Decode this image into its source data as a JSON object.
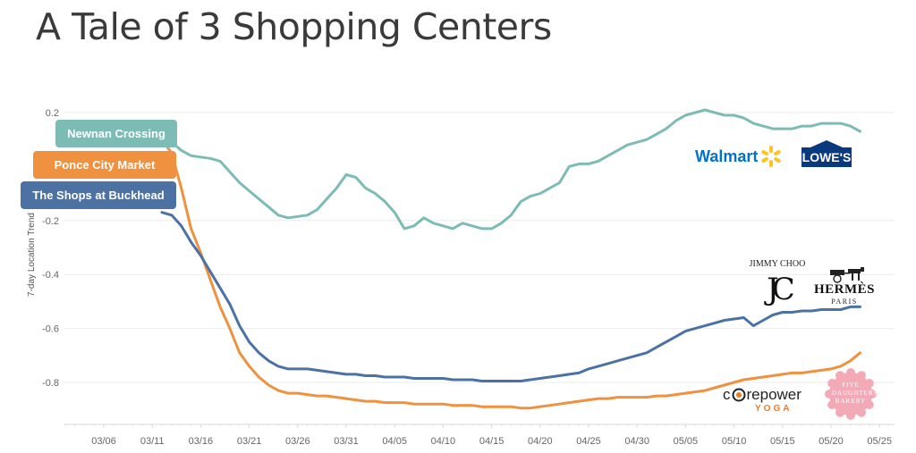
{
  "title": "A Tale of 3 Shopping Centers",
  "colors": {
    "newnan": "#7cbcb5",
    "ponce": "#f0913f",
    "buckhead": "#4c72a4"
  },
  "logos": {
    "walmart": "Walmart",
    "lowes": "LOWE'S",
    "jimmy_choo": "JIMMY CHOO",
    "jc_mark": "JC",
    "hermes": "HERMÈS",
    "hermes_sub": "PARIS",
    "corepower_a": "c",
    "corepower_b": "repower",
    "corepower_yoga": "YOGA",
    "five_daughters": "FIVE DAUGHTERS BAKERY"
  },
  "chart_data": {
    "type": "line",
    "title": "A Tale of 3 Shopping Centers",
    "xlabel": "",
    "ylabel": "7-day Location Trend",
    "ylim": [
      -0.94,
      0.24
    ],
    "yticks": [
      0.2,
      -0.2,
      -0.4,
      -0.6,
      -0.8
    ],
    "ytick_labels": [
      "0.2",
      "-0.2",
      "-0.4",
      "-0.6",
      "-0.8"
    ],
    "xticks": [
      "03/06",
      "03/11",
      "03/16",
      "03/21",
      "03/26",
      "03/31",
      "04/05",
      "04/10",
      "04/15",
      "04/20",
      "04/25",
      "04/30",
      "05/05",
      "05/10",
      "05/15",
      "05/20",
      "05/25"
    ],
    "x_start": "03/12",
    "x_end": "05/24",
    "legend": "left, labels at series start",
    "grid": "horizontal",
    "series": [
      {
        "name": "Newnan Crossing",
        "values": [
          0.1,
          0.09,
          0.06,
          0.04,
          0.035,
          0.03,
          0.02,
          -0.02,
          -0.06,
          -0.09,
          -0.12,
          -0.15,
          -0.18,
          -0.19,
          -0.185,
          -0.18,
          -0.16,
          -0.12,
          -0.08,
          -0.03,
          -0.04,
          -0.08,
          -0.1,
          -0.13,
          -0.17,
          -0.23,
          -0.22,
          -0.19,
          -0.21,
          -0.22,
          -0.23,
          -0.21,
          -0.22,
          -0.23,
          -0.23,
          -0.21,
          -0.18,
          -0.13,
          -0.11,
          -0.1,
          -0.08,
          -0.06,
          0.0,
          0.01,
          0.01,
          0.02,
          0.04,
          0.06,
          0.08,
          0.09,
          0.1,
          0.12,
          0.14,
          0.17,
          0.19,
          0.2,
          0.21,
          0.2,
          0.19,
          0.19,
          0.18,
          0.16,
          0.15,
          0.14,
          0.14,
          0.14,
          0.15,
          0.15,
          0.16,
          0.16,
          0.16,
          0.15,
          0.13
        ]
      },
      {
        "name": "Ponce City Market",
        "values": [
          0.1,
          0.05,
          -0.08,
          -0.23,
          -0.32,
          -0.42,
          -0.52,
          -0.6,
          -0.69,
          -0.74,
          -0.78,
          -0.81,
          -0.83,
          -0.84,
          -0.84,
          -0.845,
          -0.85,
          -0.85,
          -0.855,
          -0.86,
          -0.865,
          -0.87,
          -0.87,
          -0.875,
          -0.875,
          -0.875,
          -0.88,
          -0.88,
          -0.88,
          -0.88,
          -0.885,
          -0.885,
          -0.885,
          -0.89,
          -0.89,
          -0.89,
          -0.89,
          -0.895,
          -0.895,
          -0.89,
          -0.885,
          -0.88,
          -0.875,
          -0.87,
          -0.865,
          -0.86,
          -0.86,
          -0.855,
          -0.855,
          -0.855,
          -0.855,
          -0.85,
          -0.85,
          -0.845,
          -0.84,
          -0.835,
          -0.83,
          -0.82,
          -0.81,
          -0.8,
          -0.79,
          -0.785,
          -0.78,
          -0.775,
          -0.77,
          -0.765,
          -0.765,
          -0.76,
          -0.755,
          -0.75,
          -0.74,
          -0.72,
          -0.69
        ]
      },
      {
        "name": "The Shops at Buckhead",
        "values": [
          -0.17,
          -0.18,
          -0.22,
          -0.28,
          -0.33,
          -0.39,
          -0.45,
          -0.51,
          -0.59,
          -0.65,
          -0.69,
          -0.72,
          -0.74,
          -0.75,
          -0.75,
          -0.75,
          -0.755,
          -0.76,
          -0.765,
          -0.77,
          -0.77,
          -0.775,
          -0.775,
          -0.78,
          -0.78,
          -0.78,
          -0.785,
          -0.785,
          -0.785,
          -0.785,
          -0.79,
          -0.79,
          -0.79,
          -0.795,
          -0.795,
          -0.795,
          -0.795,
          -0.795,
          -0.79,
          -0.785,
          -0.78,
          -0.775,
          -0.77,
          -0.765,
          -0.75,
          -0.74,
          -0.73,
          -0.72,
          -0.71,
          -0.7,
          -0.69,
          -0.67,
          -0.65,
          -0.63,
          -0.61,
          -0.6,
          -0.59,
          -0.58,
          -0.57,
          -0.565,
          -0.56,
          -0.59,
          -0.57,
          -0.55,
          -0.54,
          -0.54,
          -0.535,
          -0.535,
          -0.53,
          -0.53,
          -0.53,
          -0.52,
          -0.52
        ]
      }
    ]
  }
}
